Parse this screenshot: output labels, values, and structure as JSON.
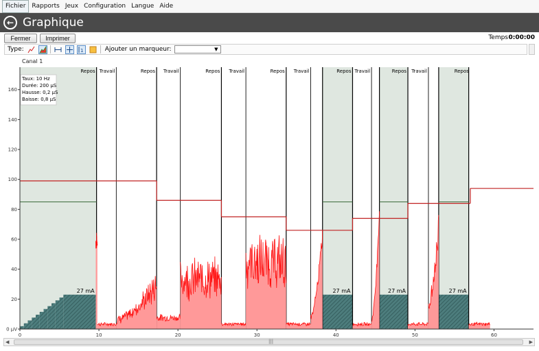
{
  "menu": [
    "Fichier",
    "Rapports",
    "Jeux",
    "Configuration",
    "Langue",
    "Aide"
  ],
  "title": "Graphique",
  "buttons": {
    "close": "Fermer",
    "print": "Imprimer"
  },
  "temps": {
    "label": "Temps",
    "value": "0:00:00"
  },
  "toolbar": {
    "type_label": "Type:",
    "add_marker_label": "Ajouter un marqueur:",
    "marker_value": ""
  },
  "channel": "Canal 1",
  "info": [
    "Taux: 10 Hz",
    "Durée: 200 µS",
    "Hausse: 0,2 µS",
    "Baisse: 0,8 µS"
  ],
  "icons": [
    "line-chart-icon",
    "area-chart-icon",
    "fit-width-icon",
    "zoom-icon",
    "cursor-icon",
    "color-icon"
  ],
  "chart_data": {
    "type": "line",
    "xlim": [
      0,
      65
    ],
    "ylim": [
      0,
      175
    ],
    "y_unit": "µV",
    "x_ticks": [
      0,
      10,
      20,
      30,
      40,
      50,
      60
    ],
    "y_ticks": [
      0,
      20,
      40,
      60,
      80,
      100,
      120,
      140,
      160
    ],
    "phases": [
      {
        "label": "Repos",
        "start": 0,
        "end": 9.7,
        "stim": "27 mA"
      },
      {
        "label": "Travail",
        "start": 9.7,
        "end": 17.3
      },
      {
        "label": "Repos",
        "start": 17.3,
        "end": 25.5
      },
      {
        "label": "Travail",
        "start": 25.5,
        "end": 33.7
      },
      {
        "label": "Repos",
        "start": 33.7,
        "end": 38.3
      },
      {
        "label": "Travail",
        "start": 38.3,
        "end": 42.1,
        "stim": "27 mA"
      },
      {
        "label": "Repos",
        "start": 42.1,
        "end": 45.5
      },
      {
        "label": "Travail",
        "start": 45.5,
        "end": 49.1,
        "stim": "27 mA"
      },
      {
        "label": "Repos",
        "start": 49.1,
        "end": 53.0
      },
      {
        "label": "Travail",
        "start": 53.0,
        "end": 56.8,
        "stim": "27 mA"
      },
      {
        "label": "Repos",
        "start": 56.8,
        "end": 65
      }
    ],
    "work_markers": [
      12.2,
      20.3,
      28.6,
      36.8,
      44.5,
      51.7
    ],
    "thresholds": [
      {
        "x": [
          0,
          17.3
        ],
        "y": 99
      },
      {
        "x": [
          17.3,
          25.5
        ],
        "y": 86
      },
      {
        "x": [
          25.5,
          33.7
        ],
        "y": 75
      },
      {
        "x": [
          33.7,
          42.1
        ],
        "y": 66
      },
      {
        "x": [
          42.1,
          49.1
        ],
        "y": 74
      },
      {
        "x": [
          49.1,
          57.0
        ],
        "y": 84
      },
      {
        "x": [
          57.0,
          65
        ],
        "y": 94
      }
    ],
    "baselines": [
      {
        "x": [
          0,
          9.7
        ],
        "y": 85
      },
      {
        "x": [
          38.3,
          42.1
        ],
        "y": 85
      },
      {
        "x": [
          45.5,
          49.1
        ],
        "y": 85
      },
      {
        "x": [
          53.0,
          56.8
        ],
        "y": 85
      }
    ],
    "stim_level": 23,
    "colors": {
      "rest_band": "#dfe7e0",
      "signal": "#ff1010",
      "fill": "#ff9999",
      "threshold": "#c02020",
      "baseline": "#3a6a3a",
      "stim": "#3e6f6f"
    }
  }
}
